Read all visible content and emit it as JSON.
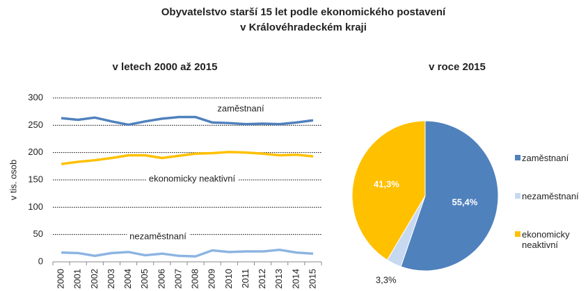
{
  "title": [
    "Obyvatelstvo starší 15 let podle ekonomického postavení",
    "v Královéhradeckém kraji"
  ],
  "chart_data": [
    {
      "type": "line",
      "title": "v letech 2000 až 2015",
      "y_label": "v tis. osob",
      "categories": [
        "2000",
        "2001",
        "2002",
        "2003",
        "2004",
        "2005",
        "2006",
        "2007",
        "2008",
        "2009",
        "2010",
        "2011",
        "2012",
        "2013",
        "2014",
        "2015"
      ],
      "series": [
        {
          "name": "zaměstnaní",
          "color": "#4f81bd",
          "values": [
            263,
            260,
            264,
            257,
            251,
            257,
            262,
            265,
            265,
            255,
            254,
            252,
            253,
            252,
            255,
            259
          ]
        },
        {
          "name": "ekonomicky neaktivní",
          "color": "#ffc000",
          "values": [
            179,
            183,
            186,
            190,
            195,
            195,
            190,
            194,
            198,
            199,
            201,
            200,
            198,
            195,
            196,
            193
          ]
        },
        {
          "name": "nezaměstnaní",
          "color": "#8db4e2",
          "values": [
            17,
            16,
            11,
            16,
            18,
            12,
            15,
            11,
            10,
            21,
            18,
            19,
            19,
            22,
            17,
            15
          ]
        }
      ],
      "ylim": [
        0,
        300
      ],
      "yticks": [
        0,
        50,
        100,
        150,
        200,
        250,
        300
      ],
      "grid": true
    },
    {
      "type": "pie",
      "title": "v roce 2015",
      "categories": [
        "zaměstnaní",
        "nezaměstnaní",
        "ekonomicky neaktivní"
      ],
      "values": [
        55.4,
        3.3,
        41.3
      ],
      "value_labels": [
        "55,4%",
        "3,3%",
        "41,3%"
      ],
      "colors": [
        "#4f81bd",
        "#c6d9f1",
        "#ffc000"
      ],
      "legend": "right"
    }
  ]
}
